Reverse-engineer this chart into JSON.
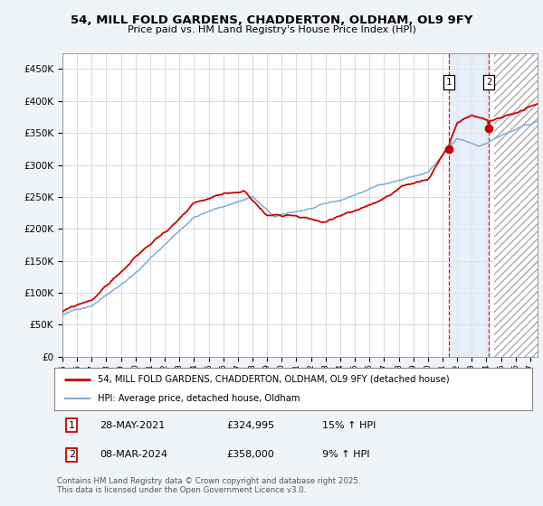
{
  "title": "54, MILL FOLD GARDENS, CHADDERTON, OLDHAM, OL9 9FY",
  "subtitle": "Price paid vs. HM Land Registry's House Price Index (HPI)",
  "ylim": [
    0,
    475000
  ],
  "ytick_vals": [
    0,
    50000,
    100000,
    150000,
    200000,
    250000,
    300000,
    350000,
    400000,
    450000
  ],
  "ytick_labels": [
    "£0",
    "£50K",
    "£100K",
    "£150K",
    "£200K",
    "£250K",
    "£300K",
    "£350K",
    "£400K",
    "£450K"
  ],
  "xlim_start": 1995.0,
  "xlim_end": 2027.5,
  "bg_color": "#f0f4f8",
  "plot_bg": "#ffffff",
  "grid_color": "#cccccc",
  "red_color": "#cc0000",
  "blue_color": "#7eadd4",
  "sale1_date": 2021.42,
  "sale1_price": 324995,
  "sale2_date": 2024.18,
  "sale2_price": 358000,
  "shaded_start": 2021.42,
  "shaded_end": 2024.18,
  "future_start": 2024.5,
  "legend_line1": "54, MILL FOLD GARDENS, CHADDERTON, OLDHAM, OL9 9FY (detached house)",
  "legend_line2": "HPI: Average price, detached house, Oldham",
  "ann1_num": "1",
  "ann1_date": "28-MAY-2021",
  "ann1_price": "£324,995",
  "ann1_hpi": "15% ↑ HPI",
  "ann2_num": "2",
  "ann2_date": "08-MAR-2024",
  "ann2_price": "£358,000",
  "ann2_hpi": "9% ↑ HPI",
  "footer": "Contains HM Land Registry data © Crown copyright and database right 2025.\nThis data is licensed under the Open Government Licence v3.0."
}
